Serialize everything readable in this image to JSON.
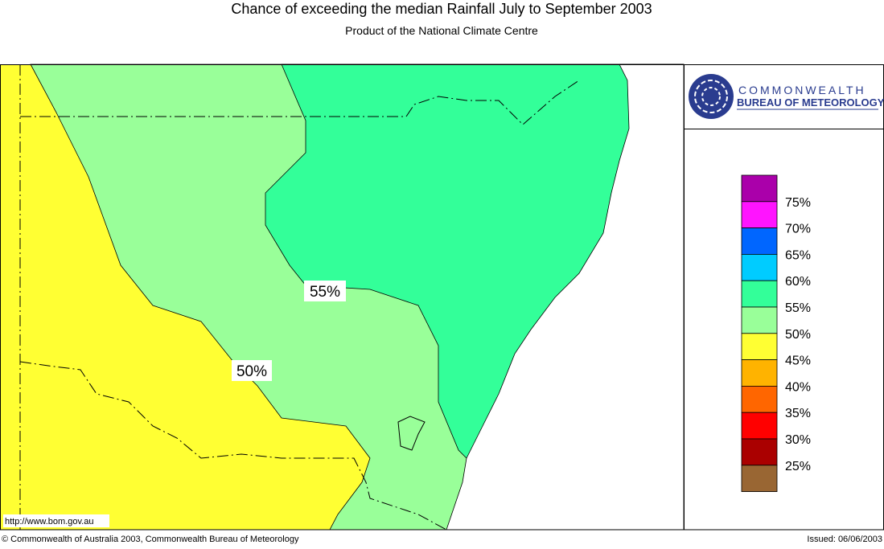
{
  "header": {
    "title": "Chance of exceeding the median Rainfall July to September 2003",
    "subtitle": "Product of the National Climate Centre"
  },
  "map": {
    "contour_labels": [
      "55%",
      "50%"
    ],
    "url": "http://www.bom.gov.au"
  },
  "logo": {
    "line1": "COMMONWEALTH",
    "line2": "BUREAU OF METEOROLOGY"
  },
  "legend": {
    "colors": [
      "#aa00aa",
      "#ff14ff",
      "#0066ff",
      "#00ccff",
      "#33ff99",
      "#99ff99",
      "#ffff33",
      "#ffb300",
      "#ff6600",
      "#ff0000",
      "#aa0000",
      "#996633"
    ],
    "labels": [
      "75%",
      "70%",
      "65%",
      "60%",
      "55%",
      "50%",
      "45%",
      "40%",
      "35%",
      "30%",
      "25%"
    ]
  },
  "footer": {
    "copyright": "© Commonwealth of Australia 2003, Commonwealth Bureau of Meteorology",
    "issued": "Issued: 06/06/2003"
  }
}
